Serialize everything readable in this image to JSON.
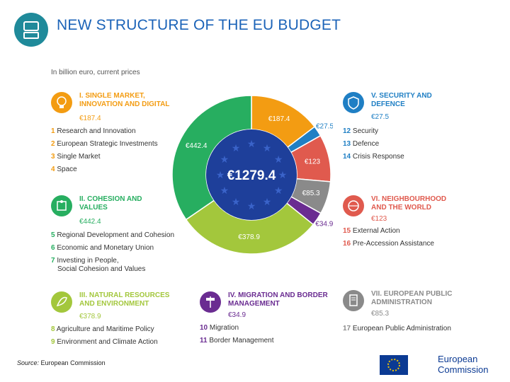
{
  "title": "NEW STRUCTURE OF THE EU BUDGET",
  "unit_note": "In billion euro, current prices",
  "source_label": "Source:",
  "source_text": " European Commission",
  "logo": {
    "line1": "European",
    "line2": "Commission"
  },
  "center_total": "€1279.4",
  "colors": {
    "single_market": "#f39c12",
    "cohesion": "#27ae60",
    "natural_resources": "#a3c73c",
    "migration": "#6a2c91",
    "security": "#1f7fc4",
    "neighbourhood": "#e05a4e",
    "administration": "#8a8a8a",
    "center": "#1e3f9a",
    "title": "#1b63b8"
  },
  "categories": {
    "single_market": {
      "heading": "I. SINGLE MARKET, INNOVATION AND DIGITAL",
      "amount": "€187.4",
      "items": [
        {
          "num": "1",
          "label": "Research and Innovation"
        },
        {
          "num": "2",
          "label": "European Strategic Investments"
        },
        {
          "num": "3",
          "label": "Single Market"
        },
        {
          "num": "4",
          "label": "Space"
        }
      ]
    },
    "cohesion": {
      "heading": "II. COHESION AND VALUES",
      "amount": "€442.4",
      "items": [
        {
          "num": "5",
          "label": "Regional Development and Cohesion"
        },
        {
          "num": "6",
          "label": "Economic and Monetary Union"
        },
        {
          "num": "7",
          "label": "Investing in People,"
        }
      ],
      "item7_line2": "Social Cohesion and Values"
    },
    "natural_resources": {
      "heading": "III. NATURAL RESOURCES AND ENVIRONMENT",
      "amount": "€378.9",
      "items": [
        {
          "num": "8",
          "label": "Agriculture and Maritime Policy"
        },
        {
          "num": "9",
          "label": "Environment and Climate Action"
        }
      ]
    },
    "migration": {
      "heading": "IV. MIGRATION AND BORDER MANAGEMENT",
      "amount": "€34.9",
      "items": [
        {
          "num": "10",
          "label": "Migration"
        },
        {
          "num": "11",
          "label": "Border Management"
        }
      ]
    },
    "security": {
      "heading": "V. SECURITY AND DEFENCE",
      "amount": "€27.5",
      "items": [
        {
          "num": "12",
          "label": "Security"
        },
        {
          "num": "13",
          "label": "Defence"
        },
        {
          "num": "14",
          "label": "Crisis Response"
        }
      ]
    },
    "neighbourhood": {
      "heading": "VI. NEIGHBOURHOOD AND THE WORLD",
      "amount": "€123",
      "items": [
        {
          "num": "15",
          "label": "External Action"
        },
        {
          "num": "16",
          "label": "Pre-Accession Assistance"
        }
      ]
    },
    "administration": {
      "heading": "VII. EUROPEAN PUBLIC ADMINISTRATION",
      "amount": "€85.3",
      "items": [
        {
          "num": "17",
          "label": "European Public Administration"
        }
      ]
    }
  },
  "chart_data": {
    "type": "pie",
    "title": "",
    "categories": [
      "I. Single Market, Innovation and Digital",
      "V. Security and Defence",
      "VI. Neighbourhood and the World",
      "VII. European Public Administration",
      "IV. Migration and Border Management",
      "III. Natural Resources and Environment",
      "II. Cohesion and Values"
    ],
    "values": [
      187.4,
      27.5,
      123,
      85.3,
      34.9,
      378.9,
      442.4
    ],
    "labels": [
      "€187.4",
      "€27.5",
      "€123",
      "€85.3",
      "€34.9",
      "€378.9",
      "€442.4"
    ],
    "colors": [
      "#f39c12",
      "#1f7fc4",
      "#e05a4e",
      "#8a8a8a",
      "#6a2c91",
      "#a3c73c",
      "#27ae60"
    ],
    "total": 1279.4,
    "donut": true
  }
}
